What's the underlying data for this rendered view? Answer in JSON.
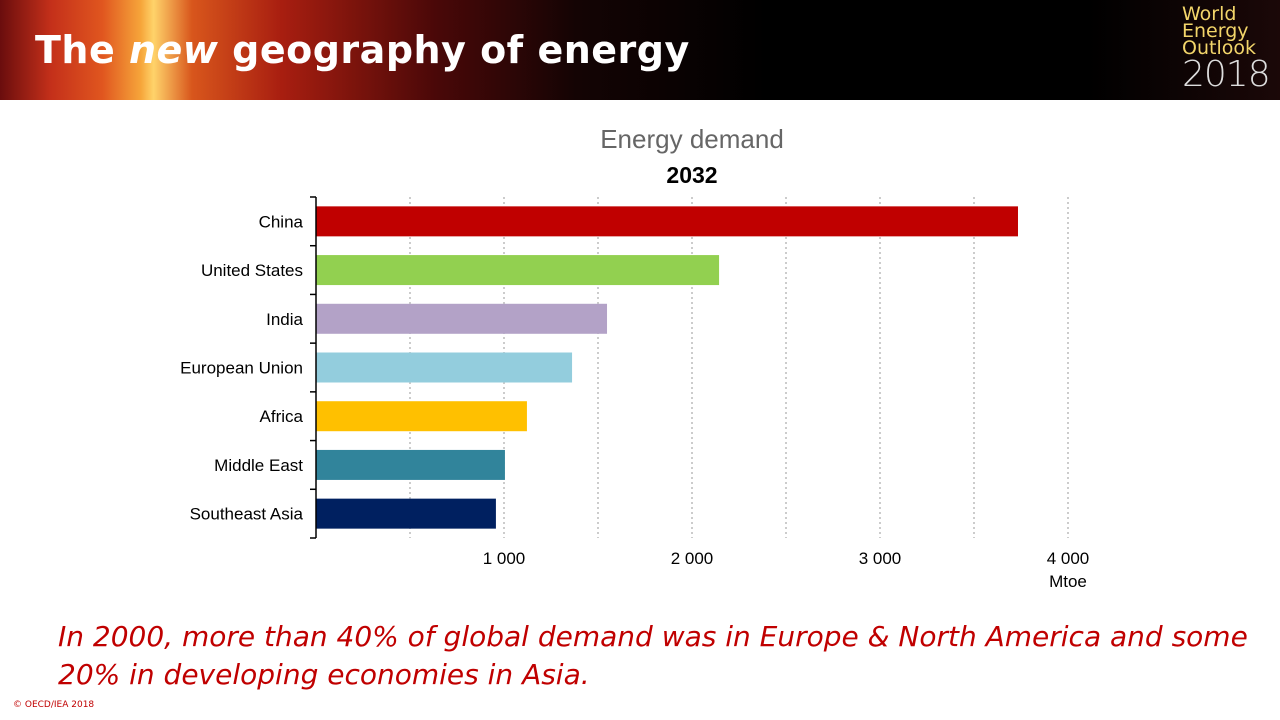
{
  "header": {
    "title_pre": "The ",
    "title_em": "new",
    "title_post": " geography of energy",
    "logo": {
      "line1": "World",
      "line2": "Energy",
      "line3": "Outlook",
      "year": "2018"
    }
  },
  "chart_data": {
    "type": "bar",
    "orientation": "horizontal",
    "title": "Energy demand",
    "subtitle": "2032",
    "categories": [
      "China",
      "United States",
      "India",
      "European Union",
      "Africa",
      "Middle East",
      "Southeast Asia"
    ],
    "values": [
      3734,
      2144,
      1548,
      1362,
      1122,
      1005,
      957
    ],
    "colors": [
      "#c00000",
      "#92d050",
      "#b3a2c7",
      "#93cddd",
      "#ffc000",
      "#31849b",
      "#002060"
    ],
    "xlim": [
      0,
      4000
    ],
    "xticks": [
      1000,
      2000,
      3000,
      4000
    ],
    "xtick_labels": [
      "1 000",
      "2 000",
      "3 000",
      "4 000"
    ],
    "xunit": "Mtoe",
    "grid": "vertical dotted every 500"
  },
  "caption": "In 2000, more than 40% of global demand was in Europe & North America and some 20% in developing economies in Asia.",
  "copyright": "© OECD/IEA 2018"
}
